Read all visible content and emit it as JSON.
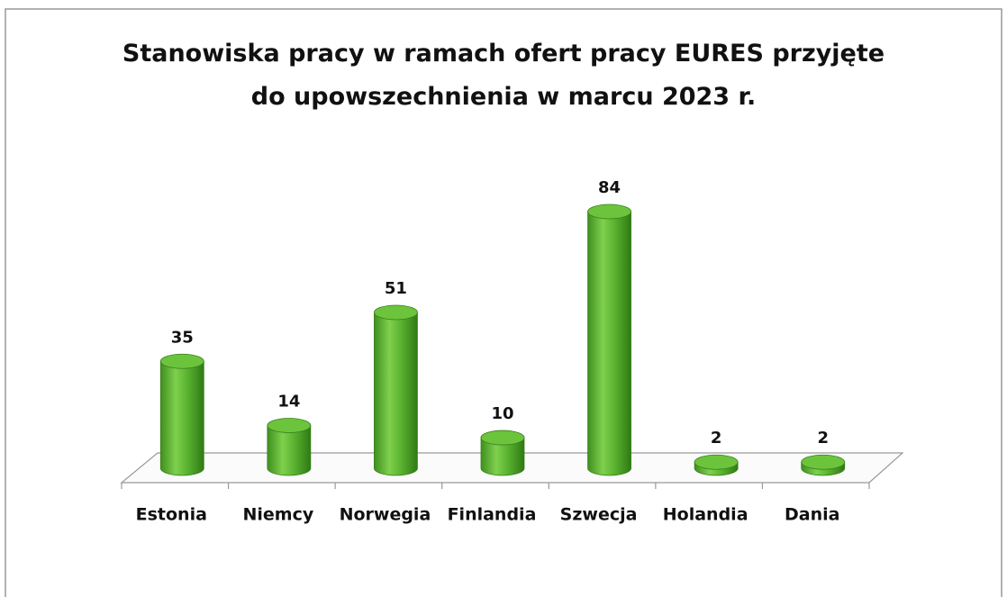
{
  "chart_data": {
    "type": "bar3d",
    "title": "Stanowiska pracy w ramach ofert pracy EURES przyjęte\ndo upowszechnienia w marcu 2023 r.",
    "categories": [
      "Estonia",
      "Niemcy",
      "Norwegia",
      "Finlandia",
      "Szwecja",
      "Holandia",
      "Dania"
    ],
    "values": [
      35,
      14,
      51,
      10,
      84,
      2,
      2
    ],
    "color": "#5cb531"
  }
}
